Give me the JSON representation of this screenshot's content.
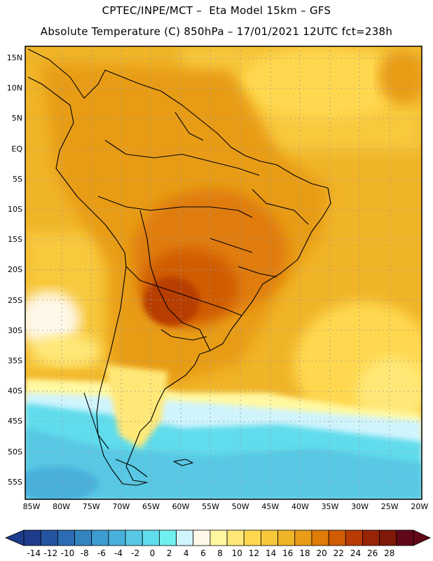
{
  "title_line1": "CPTEC/INPE/MCT –  Eta Model 15km – GFS",
  "title_line2": "Absolute Temperature (C) 850hPa – 17/01/2021 12UTC fct=238h",
  "lat_labels": [
    "15N",
    "10N",
    "5N",
    "EQ",
    "5S",
    "10S",
    "15S",
    "20S",
    "25S",
    "30S",
    "35S",
    "40S",
    "45S",
    "50S",
    "55S"
  ],
  "lon_labels": [
    "85W",
    "80W",
    "75W",
    "70W",
    "65W",
    "60W",
    "55W",
    "50W",
    "45W",
    "40W",
    "35W",
    "30W",
    "25W",
    "20W"
  ],
  "colorbar": {
    "labels": [
      "-14",
      "-12",
      "-10",
      "-8",
      "-6",
      "-4",
      "-2",
      "0",
      "2",
      "4",
      "6",
      "8",
      "10",
      "12",
      "14",
      "16",
      "18",
      "20",
      "22",
      "24",
      "26",
      "28"
    ],
    "colors": [
      "#1e3c8c",
      "#2454a0",
      "#2c6cb4",
      "#3484c0",
      "#3c9cd0",
      "#48b0dc",
      "#58c8e4",
      "#60dcec",
      "#70f0f0",
      "#d0f4fc",
      "#fff8e8",
      "#fff8a0",
      "#ffe878",
      "#ffd850",
      "#f8c83c",
      "#f0b428",
      "#e89c18",
      "#e07c08",
      "#d05c04",
      "#b83c04",
      "#982408",
      "#801808",
      "#600818"
    ]
  }
}
